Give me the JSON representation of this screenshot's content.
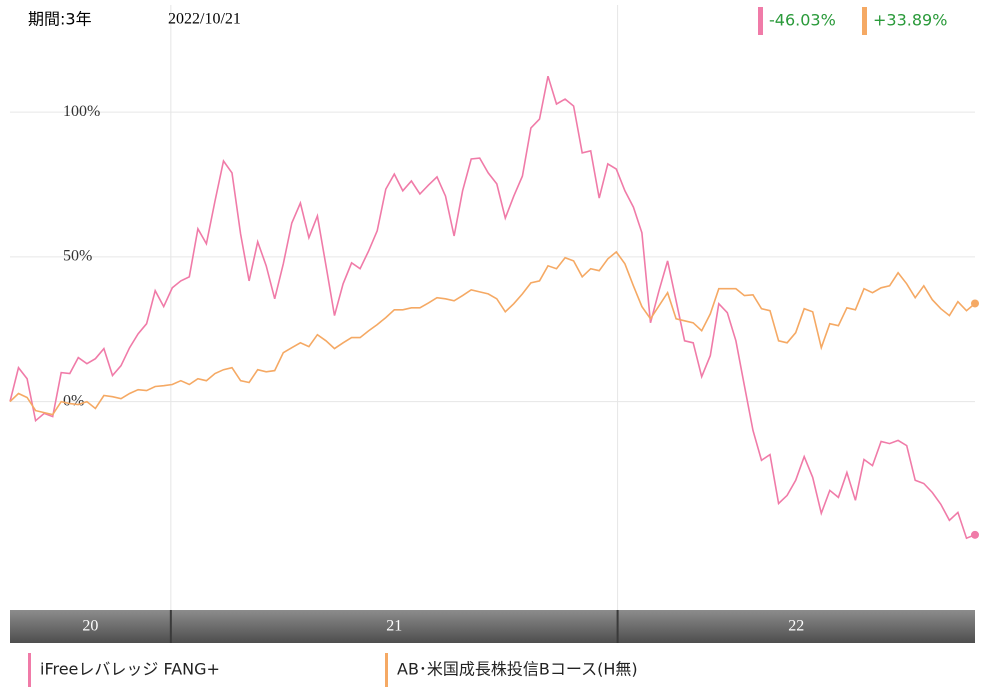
{
  "chart_data": {
    "type": "line",
    "period": "期間:3年",
    "date": "2022/10/21",
    "ylim": [
      -72,
      137
    ],
    "yticks": [
      {
        "value": 0,
        "label": "0%"
      },
      {
        "value": 50,
        "label": "50%"
      },
      {
        "value": 100,
        "label": "100%"
      }
    ],
    "xlim": [
      2020.64,
      2022.8
    ],
    "xticks": [
      2021,
      2022
    ],
    "x_band_labels": [
      "20",
      "21",
      "22"
    ],
    "grid": true,
    "series": [
      {
        "name": "iFreeレバレッジ FANG+",
        "color": "#f07ba8",
        "end_label": "-46.03%",
        "values": [
          0,
          11.7,
          7.9,
          -6.6,
          -4.1,
          -5.2,
          10,
          9.7,
          15.2,
          13.1,
          14.8,
          18.3,
          9,
          12.4,
          18.6,
          23.4,
          26.9,
          38.3,
          32.8,
          39.3,
          41.7,
          43.1,
          59.7,
          54.5,
          69.3,
          83.1,
          79,
          57.9,
          41.7,
          55.2,
          46.9,
          35.5,
          47.6,
          61.7,
          68.6,
          56.6,
          64.1,
          46.9,
          29.7,
          40.7,
          47.9,
          45.9,
          52.1,
          59,
          73.4,
          78.6,
          72.8,
          76.2,
          71.7,
          74.8,
          77.6,
          71,
          57.2,
          72.8,
          83.8,
          84.1,
          79,
          75.2,
          63.4,
          71,
          77.9,
          94.5,
          97.6,
          112.4,
          102.8,
          104.5,
          102.1,
          85.9,
          86.6,
          70.3,
          82.1,
          80.3,
          72.8,
          67.2,
          58.3,
          27.2,
          38.3,
          48.6,
          34.8,
          21,
          20.3,
          8.6,
          15.9,
          33.8,
          30.7,
          21,
          5.5,
          -10,
          -20.3,
          -18.3,
          -35.2,
          -32.4,
          -27.2,
          -19,
          -26.2,
          -38.6,
          -30.7,
          -33.1,
          -24.5,
          -34.1,
          -20,
          -22.1,
          -13.8,
          -14.5,
          -13.4,
          -15.2,
          -27.2,
          -28.3,
          -31.4,
          -35.5,
          -41,
          -38.3,
          -47.2,
          -46.03
        ]
      },
      {
        "name": "AB･米国成長株投信Bコース(H無)",
        "color": "#f5a964",
        "end_label": "+33.89%",
        "values": [
          0,
          2.8,
          1.4,
          -3.1,
          -3.8,
          -4.5,
          0,
          -0.7,
          -1,
          0,
          -2.4,
          2.1,
          1.7,
          1,
          2.8,
          4.1,
          3.8,
          5.2,
          5.5,
          5.9,
          7.2,
          5.9,
          7.9,
          7.2,
          9.7,
          11,
          11.7,
          7.2,
          6.6,
          11,
          10.3,
          10.7,
          16.9,
          18.6,
          20.3,
          19,
          23.1,
          21,
          18.3,
          20.3,
          22.1,
          22.1,
          24.5,
          26.6,
          29,
          31.7,
          31.7,
          32.4,
          32.4,
          34.1,
          35.9,
          35.5,
          34.8,
          36.6,
          38.6,
          37.9,
          37.2,
          35.5,
          31,
          33.8,
          37.2,
          41,
          41.7,
          46.9,
          45.9,
          49.7,
          48.6,
          43.1,
          45.9,
          45.2,
          49.3,
          51.7,
          47.6,
          40,
          32.8,
          28.6,
          33.1,
          37.6,
          28.6,
          27.9,
          27.2,
          24.5,
          30.3,
          39,
          39,
          39,
          36.6,
          36.9,
          32.1,
          31.4,
          21,
          20.3,
          23.8,
          32.1,
          31,
          18.6,
          26.9,
          26.2,
          32.4,
          31.7,
          39,
          37.6,
          39.3,
          40,
          44.5,
          40.7,
          35.9,
          40,
          35.2,
          32.1,
          29.7,
          34.5,
          31.4,
          33.89
        ]
      }
    ]
  }
}
